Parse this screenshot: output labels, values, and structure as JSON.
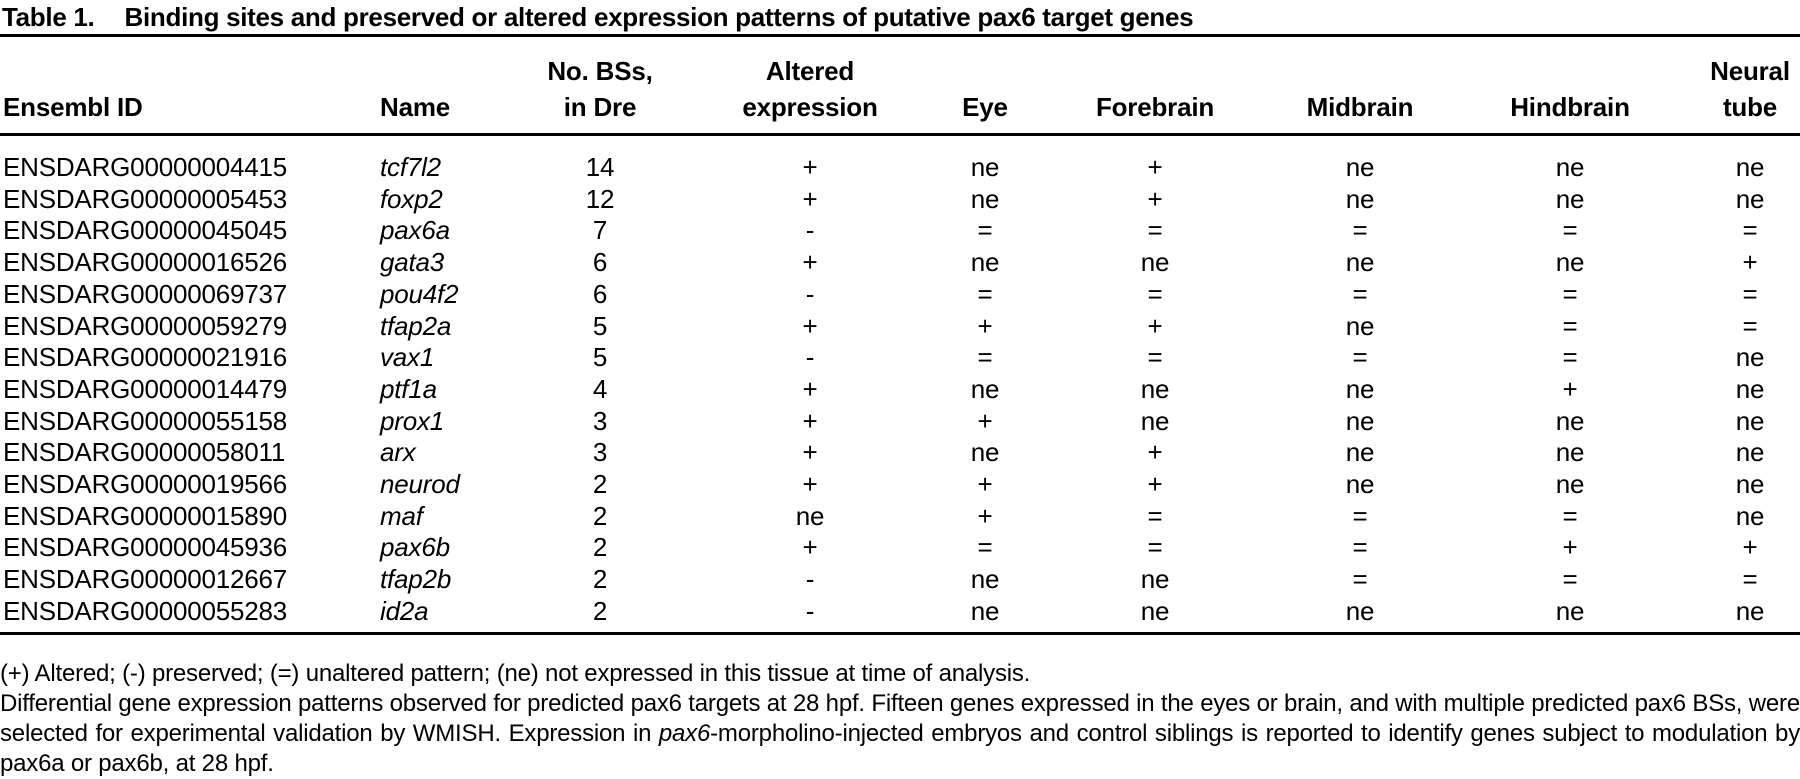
{
  "title": {
    "label": "Table 1.",
    "text": "Binding sites and preserved or altered expression patterns of putative pax6 target genes"
  },
  "table": {
    "columns": [
      {
        "key": "ensembl_id",
        "lines": [
          "Ensembl ID"
        ],
        "align": "left"
      },
      {
        "key": "name",
        "lines": [
          "Name"
        ],
        "align": "left"
      },
      {
        "key": "bss",
        "lines": [
          "No. BSs,",
          "in Dre"
        ],
        "align": "center"
      },
      {
        "key": "altered",
        "lines": [
          "Altered",
          "expression"
        ],
        "align": "center"
      },
      {
        "key": "eye",
        "lines": [
          "Eye"
        ],
        "align": "center"
      },
      {
        "key": "forebrain",
        "lines": [
          "Forebrain"
        ],
        "align": "center"
      },
      {
        "key": "midbrain",
        "lines": [
          "Midbrain"
        ],
        "align": "center"
      },
      {
        "key": "hindbrain",
        "lines": [
          "Hindbrain"
        ],
        "align": "center"
      },
      {
        "key": "neural_tube",
        "lines": [
          "Neural",
          "tube"
        ],
        "align": "center"
      }
    ],
    "rows": [
      {
        "ensembl_id": "ENSDARG00000004415",
        "name": "tcf7l2",
        "bss": "14",
        "altered": "+",
        "eye": "ne",
        "forebrain": "+",
        "midbrain": "ne",
        "hindbrain": "ne",
        "neural_tube": "ne"
      },
      {
        "ensembl_id": "ENSDARG00000005453",
        "name": "foxp2",
        "bss": "12",
        "altered": "+",
        "eye": "ne",
        "forebrain": "+",
        "midbrain": "ne",
        "hindbrain": "ne",
        "neural_tube": "ne"
      },
      {
        "ensembl_id": "ENSDARG00000045045",
        "name": "pax6a",
        "bss": "7",
        "altered": "-",
        "eye": "=",
        "forebrain": "=",
        "midbrain": "=",
        "hindbrain": "=",
        "neural_tube": "="
      },
      {
        "ensembl_id": "ENSDARG00000016526",
        "name": "gata3",
        "bss": "6",
        "altered": "+",
        "eye": "ne",
        "forebrain": "ne",
        "midbrain": "ne",
        "hindbrain": "ne",
        "neural_tube": "+"
      },
      {
        "ensembl_id": "ENSDARG00000069737",
        "name": "pou4f2",
        "bss": "6",
        "altered": "-",
        "eye": "=",
        "forebrain": "=",
        "midbrain": "=",
        "hindbrain": "=",
        "neural_tube": "="
      },
      {
        "ensembl_id": "ENSDARG00000059279",
        "name": "tfap2a",
        "bss": "5",
        "altered": "+",
        "eye": "+",
        "forebrain": "+",
        "midbrain": "ne",
        "hindbrain": "=",
        "neural_tube": "="
      },
      {
        "ensembl_id": "ENSDARG00000021916",
        "name": "vax1",
        "bss": "5",
        "altered": "-",
        "eye": "=",
        "forebrain": "=",
        "midbrain": "=",
        "hindbrain": "=",
        "neural_tube": "ne"
      },
      {
        "ensembl_id": "ENSDARG00000014479",
        "name": "ptf1a",
        "bss": "4",
        "altered": "+",
        "eye": "ne",
        "forebrain": "ne",
        "midbrain": "ne",
        "hindbrain": "+",
        "neural_tube": "ne"
      },
      {
        "ensembl_id": "ENSDARG00000055158",
        "name": "prox1",
        "bss": "3",
        "altered": "+",
        "eye": "+",
        "forebrain": "ne",
        "midbrain": "ne",
        "hindbrain": "ne",
        "neural_tube": "ne"
      },
      {
        "ensembl_id": "ENSDARG00000058011",
        "name": "arx",
        "bss": "3",
        "altered": "+",
        "eye": "ne",
        "forebrain": "+",
        "midbrain": "ne",
        "hindbrain": "ne",
        "neural_tube": "ne"
      },
      {
        "ensembl_id": "ENSDARG00000019566",
        "name": "neurod",
        "bss": "2",
        "altered": "+",
        "eye": "+",
        "forebrain": "+",
        "midbrain": "ne",
        "hindbrain": "ne",
        "neural_tube": "ne"
      },
      {
        "ensembl_id": "ENSDARG00000015890",
        "name": "maf",
        "bss": "2",
        "altered": "ne",
        "eye": "+",
        "forebrain": "=",
        "midbrain": "=",
        "hindbrain": "=",
        "neural_tube": "ne"
      },
      {
        "ensembl_id": "ENSDARG00000045936",
        "name": "pax6b",
        "bss": "2",
        "altered": "+",
        "eye": "=",
        "forebrain": "=",
        "midbrain": "=",
        "hindbrain": "+",
        "neural_tube": "+"
      },
      {
        "ensembl_id": "ENSDARG00000012667",
        "name": "tfap2b",
        "bss": "2",
        "altered": "-",
        "eye": "ne",
        "forebrain": "ne",
        "midbrain": "=",
        "hindbrain": "=",
        "neural_tube": "="
      },
      {
        "ensembl_id": "ENSDARG00000055283",
        "name": "id2a",
        "bss": "2",
        "altered": "-",
        "eye": "ne",
        "forebrain": "ne",
        "midbrain": "ne",
        "hindbrain": "ne",
        "neural_tube": "ne"
      }
    ]
  },
  "footnotes": {
    "legend": "(+) Altered; (-) preserved; (=) unaltered pattern; (ne) not expressed in this tissue at time of analysis.",
    "description_parts": [
      "Differential gene expression patterns observed for predicted pax6 targets at 28 hpf. Fifteen genes expressed in the eyes or brain, and with multiple predicted pax6 BSs, were selected for experimental validation by WMISH. Expression in ",
      "pax6",
      "-morpholino-injected embryos and control siblings is reported to identify genes subject to modulation by pax6a or pax6b, at 28 hpf."
    ]
  }
}
